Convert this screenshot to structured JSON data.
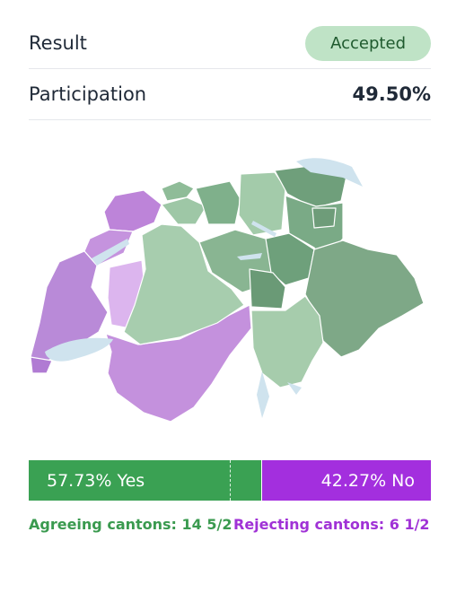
{
  "result": {
    "label": "Result",
    "status": "Accepted"
  },
  "participation": {
    "label": "Participation",
    "value": "49.50%"
  },
  "map": {
    "lake_color": "#cfe3ee",
    "yes_color": "#3aa153",
    "no_color": "#a32fde"
  },
  "vote": {
    "yes_pct": 57.73,
    "yes_text": "57.73% Yes",
    "no_text": "42.27% No",
    "majority_marker": 50
  },
  "cantons": {
    "agreeing_text": "Agreeing cantons: 14 5/2",
    "rejecting_text": "Rejecting cantons: 6 1/2"
  }
}
